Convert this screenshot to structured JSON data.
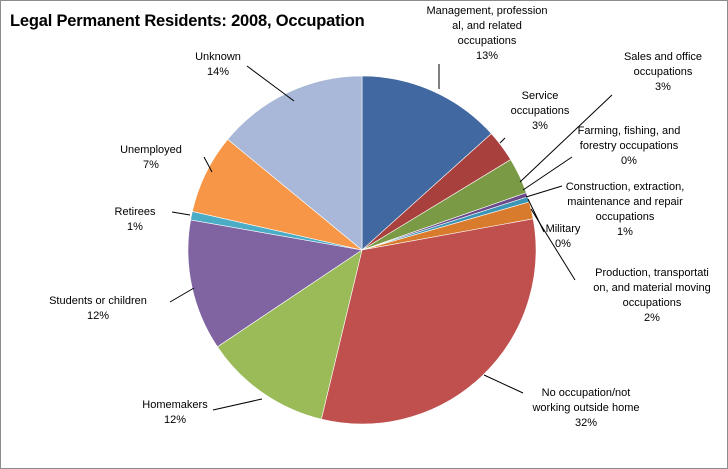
{
  "chart_data": {
    "type": "pie",
    "title": "Legal Permanent Residents: 2008, Occupation",
    "slices": [
      {
        "label": [
          "Management, profession",
          "al, and related",
          "occupations"
        ],
        "pct_text": "13%",
        "value": 13.5,
        "color": "#4168a0"
      },
      {
        "label": [
          "Service",
          "occupations"
        ],
        "pct_text": "3%",
        "value": 3.0,
        "color": "#a8403e"
      },
      {
        "label": [
          "Sales and office",
          "occupations"
        ],
        "pct_text": "3%",
        "value": 3.4,
        "color": "#7b9a45"
      },
      {
        "label": [
          "Farming, fishing,  and",
          "forestry occupations"
        ],
        "pct_text": "0%",
        "value": 0.4,
        "color": "#6a4a8a"
      },
      {
        "label": [
          "Construction, extraction,",
          "maintenance and repair",
          "occupations"
        ],
        "pct_text": "1%",
        "value": 0.5,
        "color": "#3b95b5"
      },
      {
        "label": [
          "Military"
        ],
        "pct_text": "0%",
        "value": 0.0,
        "color": "#4a77b4"
      },
      {
        "label": [
          "Production, transportati",
          "on, and material moving",
          "occupations"
        ],
        "pct_text": "2%",
        "value": 1.6,
        "color": "#d97b2c"
      },
      {
        "label": [
          "No occupation/not",
          "working outside home"
        ],
        "pct_text": "32%",
        "value": 32.0,
        "color": "#c0504d"
      },
      {
        "label": [
          "Homemakers"
        ],
        "pct_text": "12%",
        "value": 12.0,
        "color": "#9bbb59"
      },
      {
        "label": [
          "Students or children"
        ],
        "pct_text": "12%",
        "value": 12.3,
        "color": "#8064a2"
      },
      {
        "label": [
          "Retirees"
        ],
        "pct_text": "1%",
        "value": 0.8,
        "color": "#4bacc6"
      },
      {
        "label": [
          "Unemployed"
        ],
        "pct_text": "7%",
        "value": 7.5,
        "color": "#f79646"
      },
      {
        "label": [
          "Unknown"
        ],
        "pct_text": "14%",
        "value": 14.2,
        "color": "#a9b8d8"
      }
    ]
  }
}
